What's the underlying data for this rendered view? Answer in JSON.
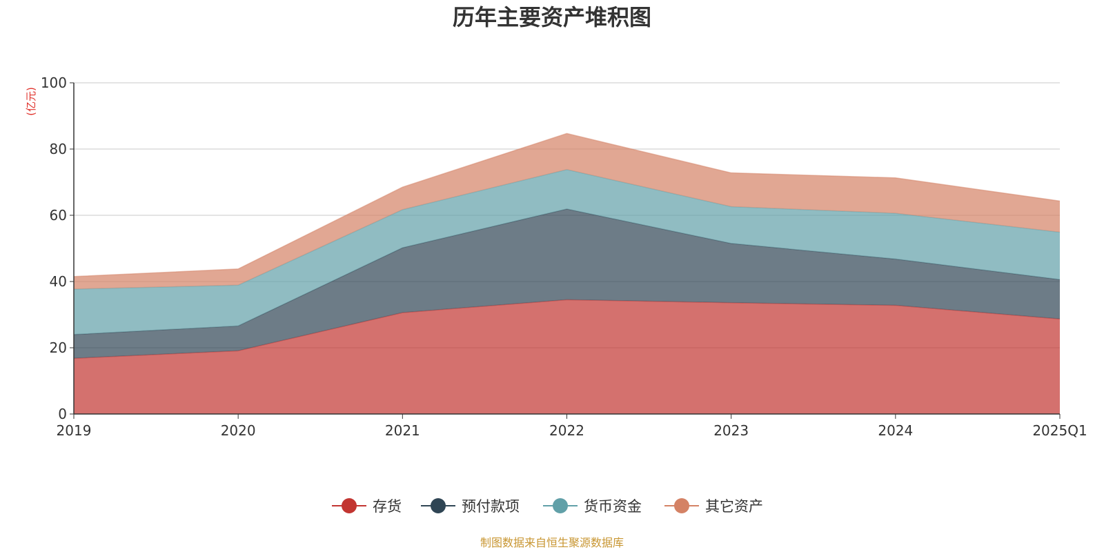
{
  "chart_data": {
    "type": "area",
    "stacked": true,
    "title": "历年主要资产堆积图",
    "ylabel": "(亿元)",
    "xlabel": "",
    "ylim": [
      0,
      100
    ],
    "yticks": [
      "0",
      "20",
      "40",
      "60",
      "80",
      "100"
    ],
    "categories": [
      "2019",
      "2020",
      "2021",
      "2022",
      "2023",
      "2024",
      "2025Q1"
    ],
    "series": [
      {
        "name": "存货",
        "color": "#c23531",
        "values": [
          16.8,
          19.1,
          30.6,
          34.5,
          33.6,
          32.8,
          28.7
        ]
      },
      {
        "name": "预付款项",
        "color": "#2f4554",
        "values": [
          7.2,
          7.5,
          19.6,
          27.4,
          17.9,
          14.0,
          11.9
        ]
      },
      {
        "name": "货币资金",
        "color": "#61a0a8",
        "values": [
          13.7,
          12.3,
          11.5,
          11.9,
          11.1,
          13.8,
          14.3
        ]
      },
      {
        "name": "其它资产",
        "color": "#d48265",
        "values": [
          3.8,
          4.9,
          6.8,
          10.9,
          10.2,
          10.7,
          9.4
        ]
      }
    ],
    "grid": true,
    "legend_position": "bottom"
  },
  "source": "制图数据来自恒生聚源数据库"
}
